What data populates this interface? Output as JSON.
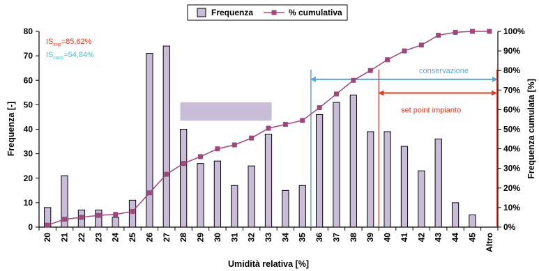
{
  "chart_data": {
    "type": "bar",
    "categories": [
      "20",
      "21",
      "22",
      "23",
      "24",
      "25",
      "26",
      "27",
      "28",
      "29",
      "30",
      "31",
      "32",
      "33",
      "34",
      "35",
      "36",
      "37",
      "38",
      "39",
      "40",
      "41",
      "42",
      "43",
      "44",
      "45",
      "Altro"
    ],
    "series": [
      {
        "name": "Frequenza",
        "type": "bar",
        "axis": "left",
        "color": "#c9bcd9",
        "values": [
          8,
          21,
          7,
          7,
          4,
          11,
          71,
          74,
          40,
          26,
          27,
          17,
          25,
          38,
          15,
          17,
          46,
          51,
          54,
          39,
          39,
          33,
          23,
          36,
          10,
          5,
          0
        ]
      },
      {
        "name": "% cumulativa",
        "type": "line",
        "axis": "right",
        "color": "#a0467a",
        "values": [
          1,
          4,
          5,
          6,
          6.5,
          8,
          17.5,
          27,
          32.5,
          36,
          40,
          42,
          45.5,
          50.5,
          52.5,
          54.5,
          61,
          68,
          75,
          80,
          85.5,
          90,
          93,
          98,
          99.5,
          100,
          100
        ]
      }
    ],
    "xlabel": "Umidità relativa [%]",
    "ylabel_left": "Frequenza [-]",
    "ylabel_right": "Frequenza cumulata [%]",
    "ylim_left": [
      0,
      80
    ],
    "ylim_right": [
      0,
      100
    ],
    "yticks_left": [
      "0",
      "10",
      "20",
      "30",
      "40",
      "50",
      "60",
      "70",
      "80"
    ],
    "yticks_right": [
      "0%",
      "10%",
      "20%",
      "30%",
      "40%",
      "50%",
      "60%",
      "70%",
      "80%",
      "90%",
      "100%"
    ],
    "grid": false,
    "legend_position": "top-center",
    "annotations": {
      "is_imp": {
        "main": "IS",
        "sub": "imp",
        "value": "=85,62%",
        "color": "#e8391e"
      },
      "is_cons": {
        "main": "IS",
        "sub": "cons",
        "value": "=54,84%",
        "color": "#3cc4d4"
      },
      "conservazione": {
        "label": "conservazione",
        "color": "#5aa7dc",
        "x_start": "35",
        "x_end": "Altro"
      },
      "set_point": {
        "label": "set point impianto",
        "color": "#e8391e",
        "x_start": "39",
        "x_end": "Altro"
      }
    },
    "highlight_color": "#c9bcd9"
  }
}
